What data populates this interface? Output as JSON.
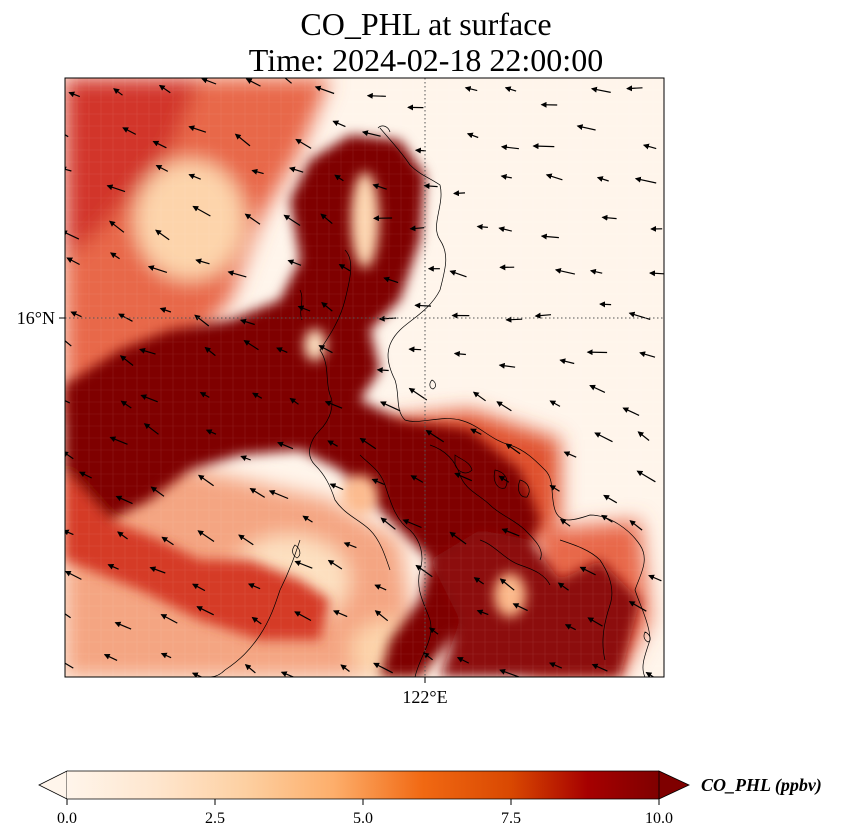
{
  "title": {
    "line1": "CO_PHL at surface",
    "line2": "Time: 2024-02-18 22:00:00"
  },
  "axes": {
    "lat_label": "16°N",
    "lon_label": "122°E",
    "gridlines": "dotted"
  },
  "colorbar": {
    "label": "CO_PHL (ppbv)",
    "min": 0.0,
    "max": 10.0,
    "ticks": [
      "0.0",
      "2.5",
      "5.0",
      "7.5",
      "10.0"
    ],
    "extend": "both",
    "colormap": [
      "#fff5eb",
      "#fee6ce",
      "#fdd0a2",
      "#fdae6b",
      "#fd8d3c",
      "#f16913",
      "#d94801",
      "#a63603",
      "#7f0000"
    ]
  },
  "colors": {
    "coastline": "#000000",
    "wind_vectors": "#000000",
    "frame": "#000000"
  }
}
